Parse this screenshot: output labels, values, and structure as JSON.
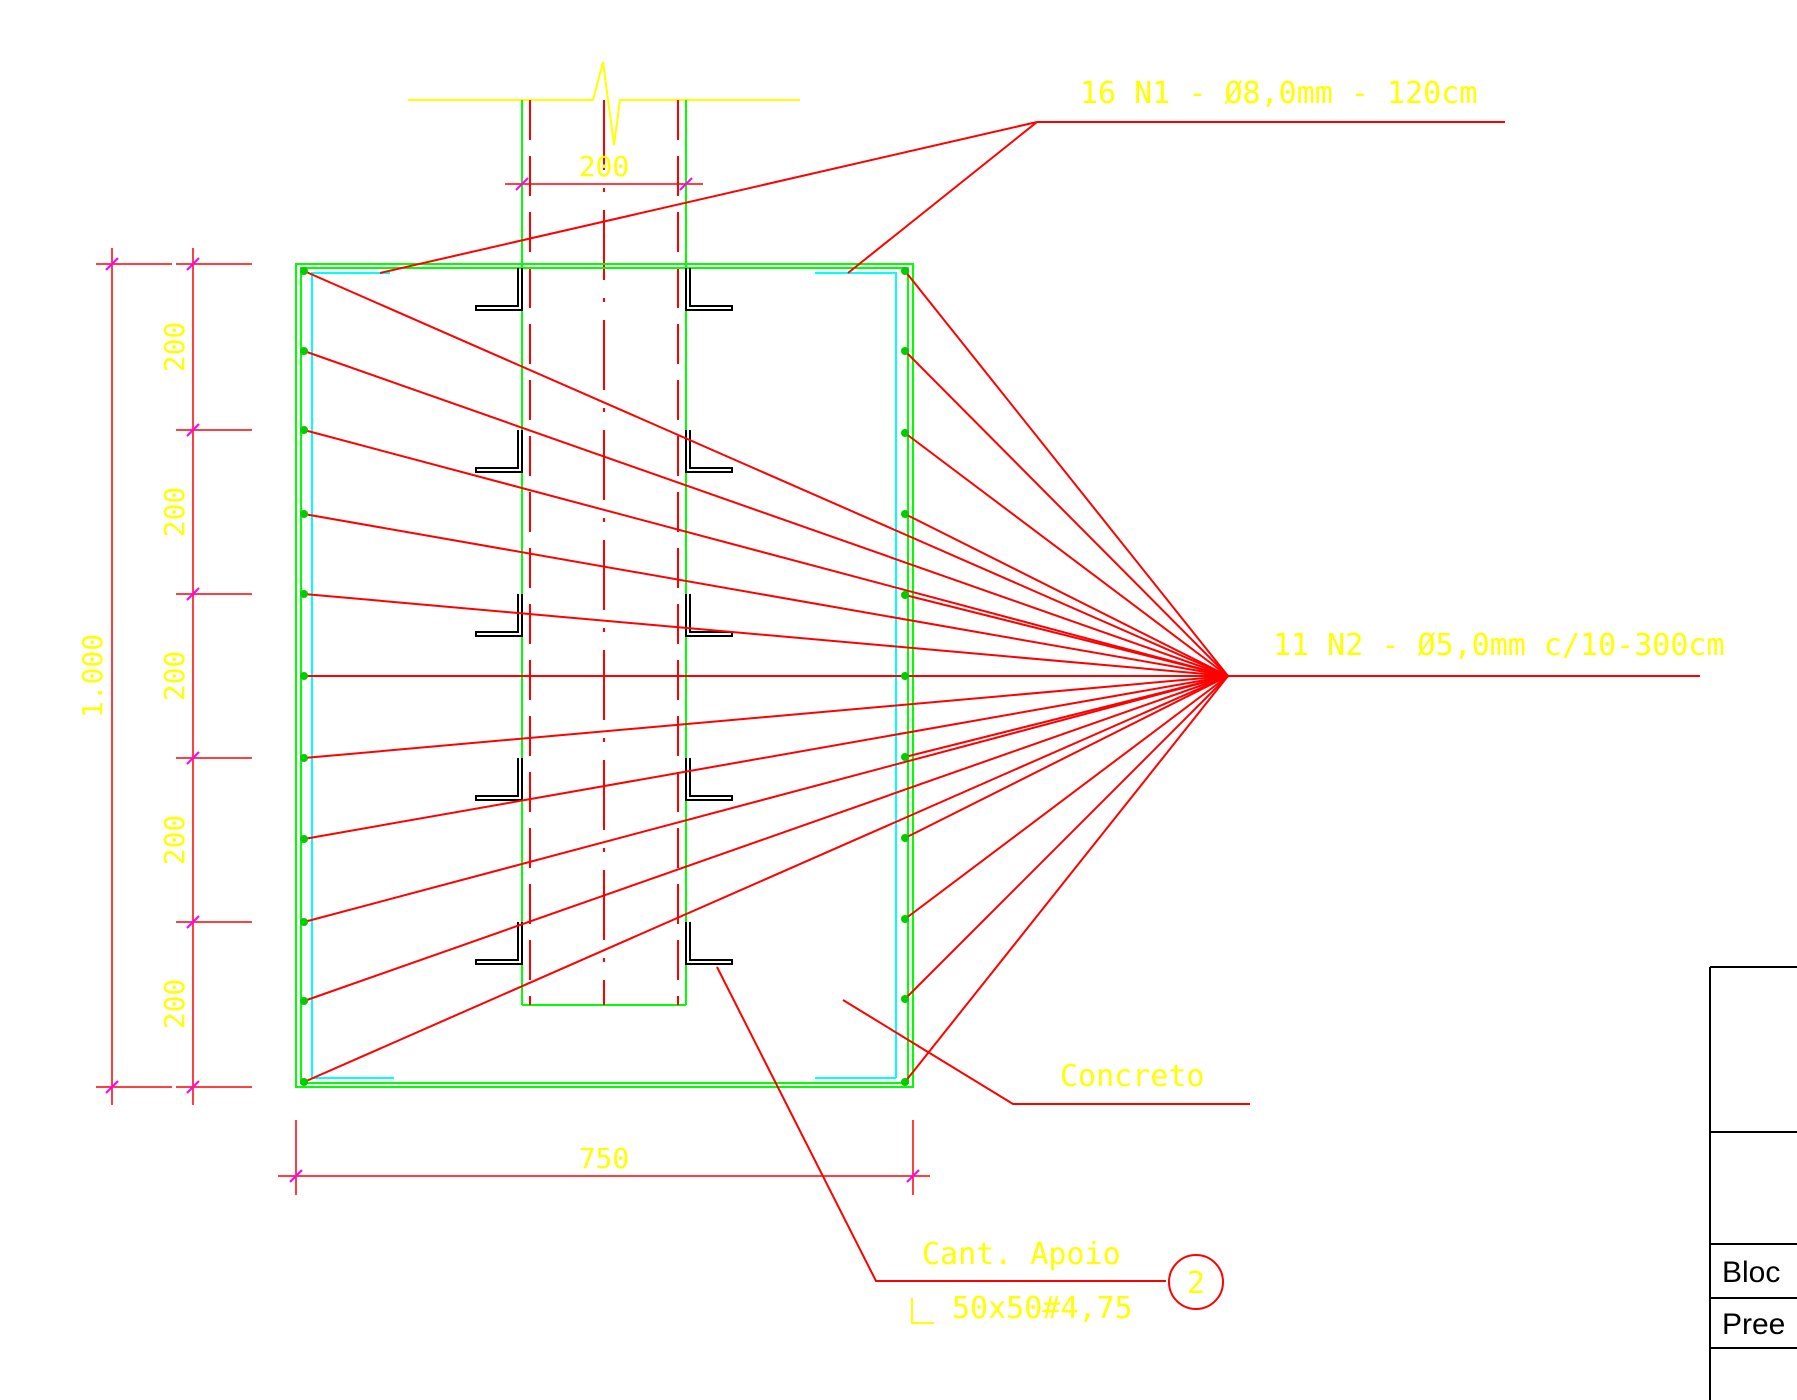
{
  "labels": {
    "n1": "16 N1 - Ø8,0mm - 120cm",
    "n2": "11 N2 - Ø5,0mm c/10-300cm",
    "concrete": "Concreto",
    "support_title": "Cant. Apoio",
    "support_profile": "50x50#4,75",
    "support_marker": "2"
  },
  "dimensions": {
    "column_width": "200",
    "total_height": "1.000",
    "segment_1": "200",
    "segment_2": "200",
    "segment_3": "200",
    "segment_4": "200",
    "segment_5": "200",
    "block_width": "750"
  },
  "title_block": {
    "row1": "Bloc",
    "row2": "Pree"
  },
  "colors": {
    "leader": "#ff0000",
    "outline": "#00ff00",
    "stirrup": "#00ffff",
    "text": "#ffff00",
    "dimension_tick": "#ff00ff",
    "angle": "#000000"
  }
}
